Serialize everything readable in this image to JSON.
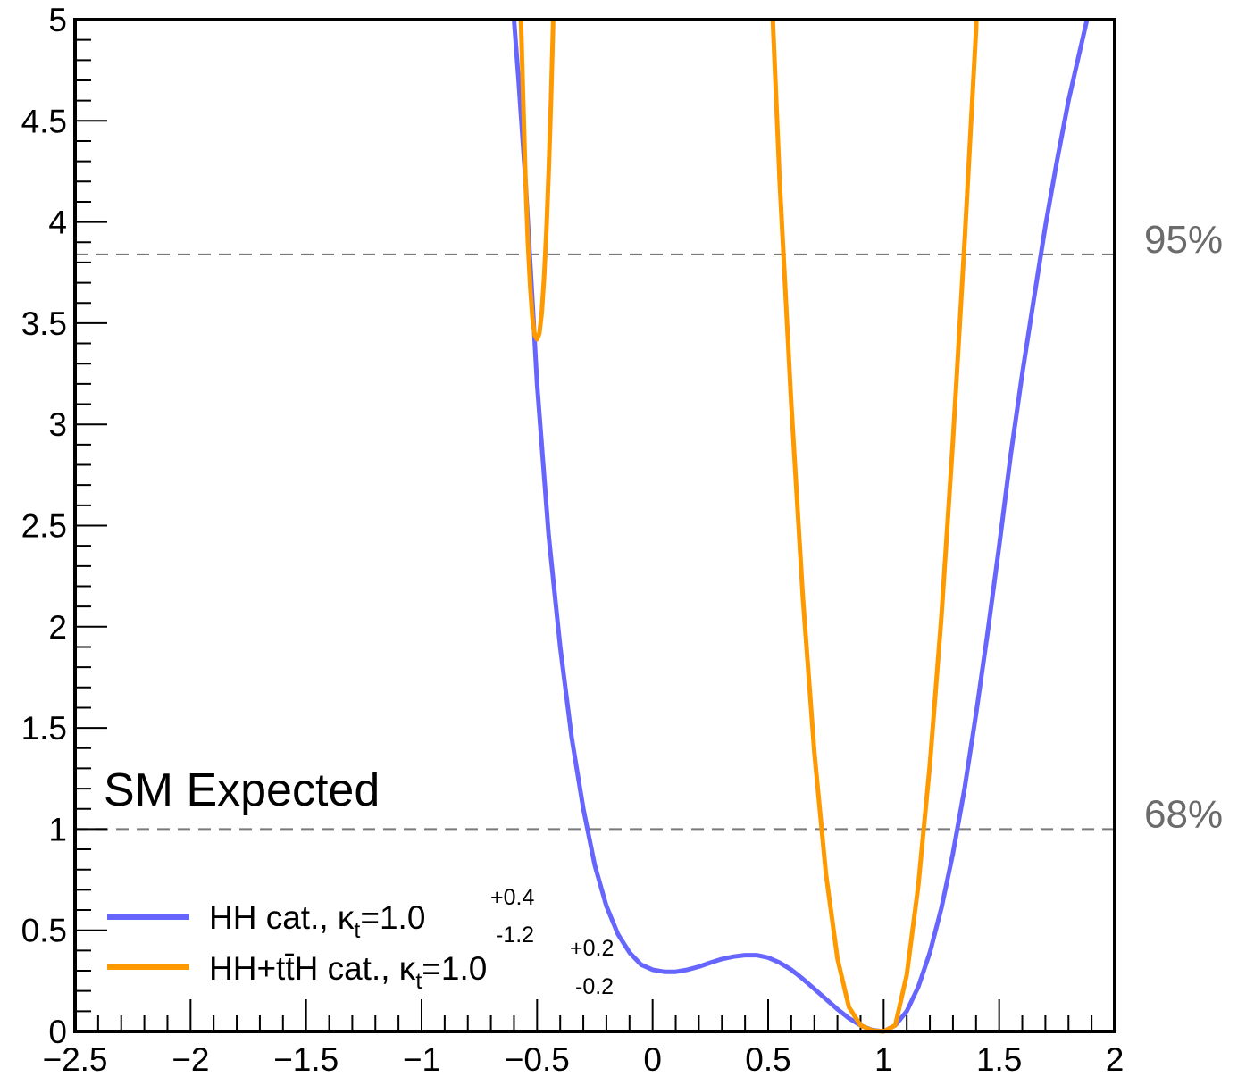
{
  "chart_data": {
    "type": "line",
    "title": "",
    "xlabel": "",
    "ylabel": "",
    "xlim": [
      -2.5,
      2.0
    ],
    "ylim": [
      0,
      5
    ],
    "x_ticks": [
      "−2.5",
      "−2",
      "−1.5",
      "−1",
      "−0.5",
      "0",
      "0.5",
      "1",
      "1.5",
      "2"
    ],
    "y_ticks": [
      "0",
      "0.5",
      "1",
      "1.5",
      "2",
      "2.5",
      "3",
      "3.5",
      "4",
      "4.5",
      "5"
    ],
    "grid": false,
    "legend_position": "bottom-left",
    "annotation": "SM Expected",
    "reference_lines": [
      {
        "label": "68%",
        "y": 1.0
      },
      {
        "label": "95%",
        "y": 3.84
      }
    ],
    "series": [
      {
        "legend_prefix": "HH cat., κ",
        "legend_sub": "t",
        "legend_value": "=1.0",
        "legend_sup": "+0.4",
        "legend_low": "-1.2",
        "color": "#6666ff",
        "points": [
          [
            -0.6,
            5.0
          ],
          [
            -0.58,
            4.7
          ],
          [
            -0.55,
            4.2
          ],
          [
            -0.52,
            3.6
          ],
          [
            -0.5,
            3.2
          ],
          [
            -0.45,
            2.45
          ],
          [
            -0.4,
            1.9
          ],
          [
            -0.35,
            1.45
          ],
          [
            -0.3,
            1.1
          ],
          [
            -0.25,
            0.82
          ],
          [
            -0.2,
            0.62
          ],
          [
            -0.15,
            0.48
          ],
          [
            -0.1,
            0.39
          ],
          [
            -0.05,
            0.33
          ],
          [
            0.0,
            0.305
          ],
          [
            0.05,
            0.295
          ],
          [
            0.1,
            0.295
          ],
          [
            0.15,
            0.305
          ],
          [
            0.2,
            0.32
          ],
          [
            0.25,
            0.34
          ],
          [
            0.3,
            0.358
          ],
          [
            0.35,
            0.37
          ],
          [
            0.4,
            0.377
          ],
          [
            0.45,
            0.377
          ],
          [
            0.5,
            0.365
          ],
          [
            0.55,
            0.34
          ],
          [
            0.6,
            0.305
          ],
          [
            0.65,
            0.26
          ],
          [
            0.7,
            0.21
          ],
          [
            0.75,
            0.16
          ],
          [
            0.8,
            0.11
          ],
          [
            0.85,
            0.065
          ],
          [
            0.9,
            0.03
          ],
          [
            0.95,
            0.007
          ],
          [
            1.0,
            0.0
          ],
          [
            1.05,
            0.03
          ],
          [
            1.1,
            0.1
          ],
          [
            1.15,
            0.22
          ],
          [
            1.2,
            0.39
          ],
          [
            1.25,
            0.61
          ],
          [
            1.3,
            0.88
          ],
          [
            1.35,
            1.2
          ],
          [
            1.4,
            1.57
          ],
          [
            1.45,
            1.97
          ],
          [
            1.5,
            2.4
          ],
          [
            1.55,
            2.85
          ],
          [
            1.6,
            3.25
          ],
          [
            1.65,
            3.62
          ],
          [
            1.7,
            3.98
          ],
          [
            1.75,
            4.3
          ],
          [
            1.8,
            4.6
          ],
          [
            1.85,
            4.85
          ],
          [
            1.88,
            5.0
          ]
        ]
      },
      {
        "legend_prefix": "HH+tt̄H cat., κ",
        "legend_sub": "t",
        "legend_value": "=1.0",
        "legend_sup": "+0.2",
        "legend_low": "-0.2",
        "color": "#ff9900",
        "points_left": [
          [
            -0.57,
            5.0
          ],
          [
            -0.56,
            4.6
          ],
          [
            -0.55,
            4.2
          ],
          [
            -0.54,
            3.9
          ],
          [
            -0.53,
            3.68
          ],
          [
            -0.52,
            3.52
          ],
          [
            -0.51,
            3.44
          ],
          [
            -0.5,
            3.42
          ],
          [
            -0.49,
            3.45
          ],
          [
            -0.48,
            3.55
          ],
          [
            -0.47,
            3.72
          ],
          [
            -0.46,
            3.95
          ],
          [
            -0.45,
            4.25
          ],
          [
            -0.44,
            4.6
          ],
          [
            -0.43,
            5.0
          ]
        ],
        "points_right": [
          [
            0.52,
            5.0
          ],
          [
            0.55,
            4.2
          ],
          [
            0.6,
            3.1
          ],
          [
            0.65,
            2.15
          ],
          [
            0.7,
            1.38
          ],
          [
            0.75,
            0.78
          ],
          [
            0.8,
            0.36
          ],
          [
            0.85,
            0.12
          ],
          [
            0.9,
            0.03
          ],
          [
            0.95,
            0.005
          ],
          [
            1.0,
            0.0
          ],
          [
            1.05,
            0.03
          ],
          [
            1.1,
            0.28
          ],
          [
            1.15,
            0.72
          ],
          [
            1.2,
            1.32
          ],
          [
            1.25,
            2.05
          ],
          [
            1.3,
            2.92
          ],
          [
            1.35,
            3.9
          ],
          [
            1.4,
            4.95
          ],
          [
            1.401,
            5.0
          ]
        ]
      }
    ]
  }
}
